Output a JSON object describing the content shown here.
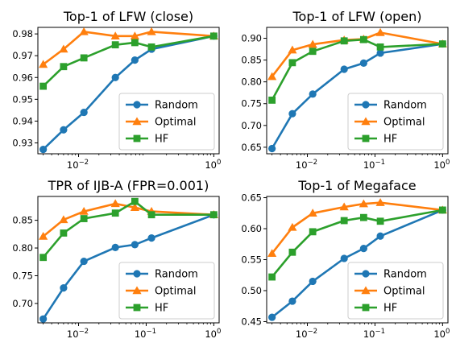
{
  "chart_data": [
    {
      "type": "line",
      "title": "Top-1 of LFW (close)",
      "xscale": "log",
      "xlim": [
        0.0025,
        1.2
      ],
      "ylim": [
        0.925,
        0.983
      ],
      "xticks": [
        0.01,
        1
      ],
      "xtick_labels": [
        {
          "base": "10",
          "exp": "−2"
        },
        {
          "base": "10",
          "exp": "0"
        }
      ],
      "yticks": [
        0.93,
        0.94,
        0.95,
        0.96,
        0.97,
        0.98
      ],
      "ytick_labels": [
        "0.93",
        "0.94",
        "0.95",
        "0.96",
        "0.97",
        "0.98"
      ],
      "legend_loc": "lower-right",
      "grid": false,
      "x": [
        0.003,
        0.006,
        0.012,
        0.035,
        0.068,
        0.12,
        1.0
      ],
      "series": [
        {
          "name": "Random",
          "color": "#1f77b4",
          "marker": "circle",
          "values": [
            0.927,
            0.936,
            0.944,
            0.96,
            0.968,
            0.973,
            0.979
          ]
        },
        {
          "name": "Optimal",
          "color": "#ff7f0e",
          "marker": "triangle",
          "values": [
            0.966,
            0.973,
            0.981,
            0.979,
            0.979,
            0.981,
            0.979
          ]
        },
        {
          "name": "HF",
          "color": "#2ca02c",
          "marker": "square",
          "values": [
            0.956,
            0.965,
            0.969,
            0.975,
            0.976,
            0.974,
            0.979
          ]
        }
      ]
    },
    {
      "type": "line",
      "title": "Top-1 of LFW (open)",
      "xscale": "log",
      "xlim": [
        0.0025,
        1.2
      ],
      "ylim": [
        0.635,
        0.925
      ],
      "xticks": [
        0.01,
        0.1,
        1
      ],
      "xtick_labels": [
        {
          "base": "10",
          "exp": "−2"
        },
        {
          "base": "10",
          "exp": "−1"
        },
        {
          "base": "10",
          "exp": "0"
        }
      ],
      "yticks": [
        0.65,
        0.7,
        0.75,
        0.8,
        0.85,
        0.9
      ],
      "ytick_labels": [
        "0.65",
        "0.70",
        "0.75",
        "0.80",
        "0.85",
        "0.90"
      ],
      "legend_loc": "lower-right",
      "grid": false,
      "x": [
        0.003,
        0.006,
        0.012,
        0.035,
        0.068,
        0.12,
        1.0
      ],
      "series": [
        {
          "name": "Random",
          "color": "#1f77b4",
          "marker": "circle",
          "values": [
            0.647,
            0.727,
            0.772,
            0.829,
            0.843,
            0.866,
            0.887
          ]
        },
        {
          "name": "Optimal",
          "color": "#ff7f0e",
          "marker": "triangle",
          "values": [
            0.812,
            0.873,
            0.886,
            0.896,
            0.898,
            0.913,
            0.887
          ]
        },
        {
          "name": "HF",
          "color": "#2ca02c",
          "marker": "square",
          "values": [
            0.758,
            0.844,
            0.87,
            0.894,
            0.897,
            0.88,
            0.887
          ]
        }
      ]
    },
    {
      "type": "line",
      "title": "TPR of IJB-A (FPR=0.001)",
      "xscale": "log",
      "xlim": [
        0.0025,
        1.2
      ],
      "ylim": [
        0.665,
        0.893
      ],
      "xticks": [
        0.01,
        0.1,
        1
      ],
      "xtick_labels": [
        {
          "base": "10",
          "exp": "−2"
        },
        {
          "base": "10",
          "exp": "−1"
        },
        {
          "base": "10",
          "exp": "0"
        }
      ],
      "yticks": [
        0.7,
        0.75,
        0.8,
        0.85
      ],
      "ytick_labels": [
        "0.70",
        "0.75",
        "0.80",
        "0.85"
      ],
      "legend_loc": "lower-right",
      "grid": false,
      "x": [
        0.003,
        0.006,
        0.012,
        0.035,
        0.068,
        0.12,
        1.0
      ],
      "series": [
        {
          "name": "Random",
          "color": "#1f77b4",
          "marker": "circle",
          "values": [
            0.672,
            0.728,
            0.776,
            0.801,
            0.806,
            0.818,
            0.86
          ]
        },
        {
          "name": "Optimal",
          "color": "#ff7f0e",
          "marker": "triangle",
          "values": [
            0.821,
            0.851,
            0.866,
            0.88,
            0.873,
            0.866,
            0.86
          ]
        },
        {
          "name": "HF",
          "color": "#2ca02c",
          "marker": "square",
          "values": [
            0.783,
            0.827,
            0.853,
            0.863,
            0.884,
            0.86,
            0.86
          ]
        }
      ]
    },
    {
      "type": "line",
      "title": "Top-1 of Megaface",
      "xscale": "log",
      "xlim": [
        0.0025,
        1.2
      ],
      "ylim": [
        0.448,
        0.652
      ],
      "xticks": [
        0.01,
        0.1,
        1
      ],
      "xtick_labels": [
        {
          "base": "10",
          "exp": "−2"
        },
        {
          "base": "10",
          "exp": "−1"
        },
        {
          "base": "10",
          "exp": "0"
        }
      ],
      "yticks": [
        0.45,
        0.5,
        0.55,
        0.6,
        0.65
      ],
      "ytick_labels": [
        "0.45",
        "0.50",
        "0.55",
        "0.60",
        "0.65"
      ],
      "legend_loc": "lower-right",
      "grid": false,
      "x": [
        0.003,
        0.006,
        0.012,
        0.035,
        0.068,
        0.12,
        1.0
      ],
      "series": [
        {
          "name": "Random",
          "color": "#1f77b4",
          "marker": "circle",
          "values": [
            0.457,
            0.483,
            0.515,
            0.552,
            0.568,
            0.588,
            0.63
          ]
        },
        {
          "name": "Optimal",
          "color": "#ff7f0e",
          "marker": "triangle",
          "values": [
            0.56,
            0.602,
            0.625,
            0.635,
            0.64,
            0.642,
            0.63
          ]
        },
        {
          "name": "HF",
          "color": "#2ca02c",
          "marker": "square",
          "values": [
            0.522,
            0.562,
            0.595,
            0.613,
            0.618,
            0.612,
            0.63
          ]
        }
      ]
    }
  ]
}
